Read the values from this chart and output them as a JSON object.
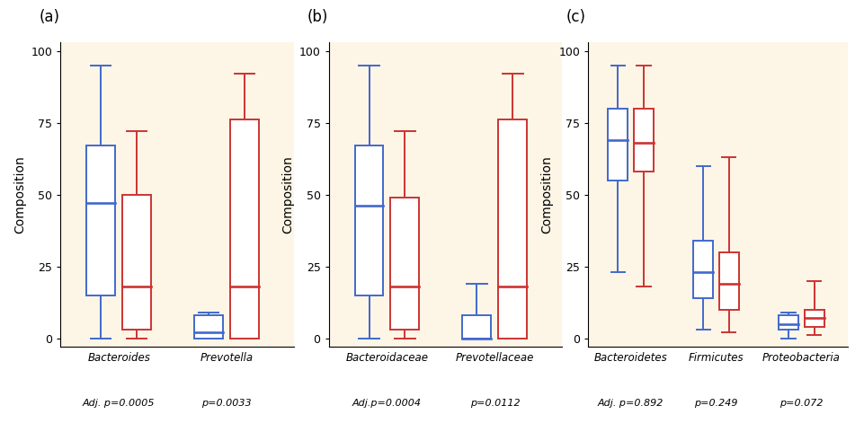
{
  "panels": [
    {
      "label": "(a)",
      "ylabel": "Composition",
      "groups": [
        "Bacteroides",
        "Prevotella"
      ],
      "pvalues": [
        "Adj. p=0.0005",
        "p=0.0033"
      ],
      "boxes": [
        {
          "name": "Bacteroides",
          "normal": {
            "whislo": 0,
            "q1": 15,
            "median": 47,
            "q3": 67,
            "whishi": 95
          },
          "obese": {
            "whislo": 0,
            "q1": 3,
            "median": 18,
            "q3": 50,
            "whishi": 72
          }
        },
        {
          "name": "Prevotella",
          "normal": {
            "whislo": 0,
            "q1": 0,
            "median": 2,
            "q3": 8,
            "whishi": 9
          },
          "obese": {
            "whislo": 0,
            "q1": 0,
            "median": 18,
            "q3": 76,
            "whishi": 92
          }
        }
      ]
    },
    {
      "label": "(b)",
      "ylabel": "Composition",
      "groups": [
        "Bacteroidaceae",
        "Prevotellaceae"
      ],
      "pvalues": [
        "Adj.p=0.0004",
        "p=0.0112"
      ],
      "boxes": [
        {
          "name": "Bacteroidaceae",
          "normal": {
            "whislo": 0,
            "q1": 15,
            "median": 46,
            "q3": 67,
            "whishi": 95
          },
          "obese": {
            "whislo": 0,
            "q1": 3,
            "median": 18,
            "q3": 49,
            "whishi": 72
          }
        },
        {
          "name": "Prevotellaceae",
          "normal": {
            "whislo": 0,
            "q1": 0,
            "median": 0,
            "q3": 8,
            "whishi": 19
          },
          "obese": {
            "whislo": 0,
            "q1": 0,
            "median": 18,
            "q3": 76,
            "whishi": 92
          }
        }
      ]
    },
    {
      "label": "(c)",
      "ylabel": "Composition",
      "groups": [
        "Bacteroidetes",
        "Firmicutes",
        "Proteobacteria"
      ],
      "pvalues": [
        "Adj. p=0.892",
        "p=0.249",
        "p=0.072"
      ],
      "boxes": [
        {
          "name": "Bacteroidetes",
          "normal": {
            "whislo": 23,
            "q1": 55,
            "median": 69,
            "q3": 80,
            "whishi": 95
          },
          "obese": {
            "whislo": 18,
            "q1": 58,
            "median": 68,
            "q3": 80,
            "whishi": 95
          }
        },
        {
          "name": "Firmicutes",
          "normal": {
            "whislo": 3,
            "q1": 14,
            "median": 23,
            "q3": 34,
            "whishi": 60
          },
          "obese": {
            "whislo": 2,
            "q1": 10,
            "median": 19,
            "q3": 30,
            "whishi": 63
          }
        },
        {
          "name": "Proteobacteria",
          "normal": {
            "whislo": 0,
            "q1": 3,
            "median": 5,
            "q3": 8,
            "whishi": 9
          },
          "obese": {
            "whislo": 1,
            "q1": 4,
            "median": 7,
            "q3": 10,
            "whishi": 20
          }
        }
      ]
    }
  ],
  "normal_color": "#4169cc",
  "obese_color": "#cc3333",
  "bg_color": "#fdf5e6",
  "yticks": [
    0,
    25,
    50,
    75,
    100
  ]
}
